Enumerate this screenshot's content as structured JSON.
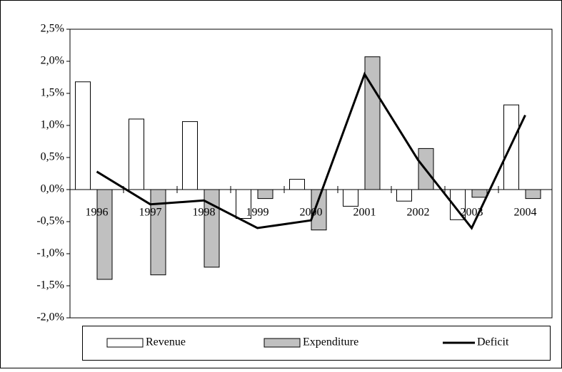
{
  "chart_data": {
    "type": "bar-line",
    "categories": [
      "1996",
      "1997",
      "1998",
      "1999",
      "2000",
      "2001",
      "2002",
      "2003",
      "2004"
    ],
    "series": [
      {
        "name": "Revenue",
        "type": "bar",
        "color": "#ffffff",
        "values": [
          1.68,
          1.1,
          1.06,
          -0.45,
          0.16,
          -0.26,
          -0.18,
          -0.47,
          1.32
        ]
      },
      {
        "name": "Expenditure",
        "type": "bar",
        "color": "#c0c0c0",
        "values": [
          -1.4,
          -1.33,
          -1.21,
          -0.14,
          -0.63,
          2.07,
          0.64,
          -0.12,
          -0.14
        ]
      },
      {
        "name": "Deficit",
        "type": "line",
        "color": "#000000",
        "values": [
          0.28,
          -0.23,
          -0.17,
          -0.6,
          -0.48,
          1.8,
          0.46,
          -0.6,
          1.16
        ]
      }
    ],
    "ylim": [
      -2.0,
      2.5
    ],
    "yticks": [
      {
        "value": -2.0,
        "label": "-2,0%"
      },
      {
        "value": -1.5,
        "label": "-1,5%"
      },
      {
        "value": -1.0,
        "label": "-1,0%"
      },
      {
        "value": -0.5,
        "label": "-0,5%"
      },
      {
        "value": 0.0,
        "label": "0,0%"
      },
      {
        "value": 0.5,
        "label": "0,5%"
      },
      {
        "value": 1.0,
        "label": "1,0%"
      },
      {
        "value": 1.5,
        "label": "1,5%"
      },
      {
        "value": 2.0,
        "label": "2,0%"
      },
      {
        "value": 2.5,
        "label": "2,5%"
      }
    ],
    "legend": "bottom"
  }
}
